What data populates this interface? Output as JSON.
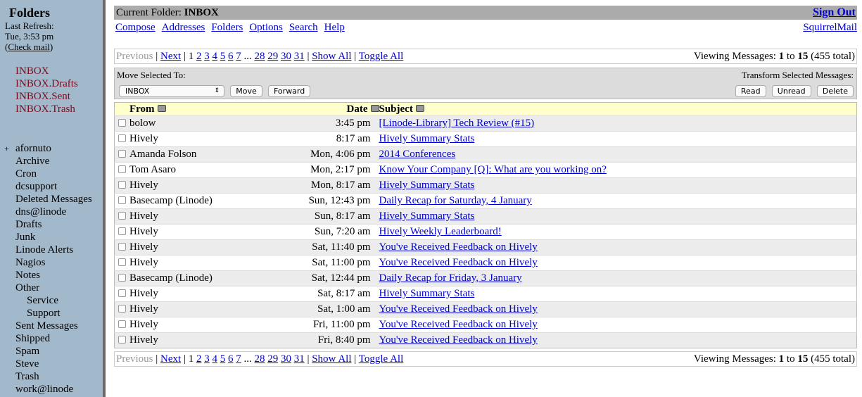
{
  "sidebar": {
    "title": "Folders",
    "last_refresh_label": "Last Refresh:",
    "last_refresh": "Tue, 3:53 pm",
    "check_mail": "Check mail",
    "special": [
      "INBOX",
      "INBOX.Drafts",
      "INBOX.Sent",
      "INBOX.Trash"
    ],
    "folders": [
      {
        "name": "afornuto",
        "collapsed": true
      },
      {
        "name": "Archive"
      },
      {
        "name": "Cron"
      },
      {
        "name": "dcsupport"
      },
      {
        "name": "Deleted Messages"
      },
      {
        "name": "dns@linode"
      },
      {
        "name": "Drafts"
      },
      {
        "name": "Junk"
      },
      {
        "name": "Linode Alerts"
      },
      {
        "name": "Nagios"
      },
      {
        "name": "Notes"
      },
      {
        "name": "Other"
      },
      {
        "name": "Service",
        "sub": true
      },
      {
        "name": "Support",
        "sub": true
      },
      {
        "name": "Sent Messages"
      },
      {
        "name": "Shipped"
      },
      {
        "name": "Spam"
      },
      {
        "name": "Steve"
      },
      {
        "name": "Trash"
      },
      {
        "name": "work@linode"
      }
    ]
  },
  "header": {
    "current_folder_label": "Current Folder:",
    "current_folder": "INBOX",
    "sign_out": "Sign Out",
    "brand": "SquirrelMail",
    "nav": [
      "Compose",
      "Addresses",
      "Folders",
      "Options",
      "Search",
      "Help"
    ]
  },
  "pager": {
    "previous": "Previous",
    "next": "Next",
    "current": "1",
    "pages": [
      "2",
      "3",
      "4",
      "5",
      "6",
      "7"
    ],
    "ellipsis": "...",
    "last_pages": [
      "28",
      "29",
      "30",
      "31"
    ],
    "show_all": "Show All",
    "toggle_all": "Toggle All",
    "viewing_label": "Viewing Messages:",
    "from": "1",
    "to_label": "to",
    "to": "15",
    "total": "(455 total)"
  },
  "actions": {
    "move_label": "Move Selected To:",
    "move_target": "INBOX",
    "move": "Move",
    "forward": "Forward",
    "transform_label": "Transform Selected Messages:",
    "read": "Read",
    "unread": "Unread",
    "delete": "Delete"
  },
  "columns": {
    "from": "From",
    "date": "Date",
    "subject": "Subject"
  },
  "messages": [
    {
      "from": "bolow",
      "date": "3:45 pm",
      "subject": "[Linode-Library] Tech Review (#15)"
    },
    {
      "from": "Hively",
      "date": "8:17 am",
      "subject": "Hively Summary Stats"
    },
    {
      "from": "Amanda Folson",
      "date": "Mon, 4:06 pm",
      "subject": "2014 Conferences"
    },
    {
      "from": "Tom Asaro",
      "date": "Mon, 2:17 pm",
      "subject": "Know Your Company [Q]: What are you working on?"
    },
    {
      "from": "Hively",
      "date": "Mon, 8:17 am",
      "subject": "Hively Summary Stats"
    },
    {
      "from": "Basecamp (Linode)",
      "date": "Sun, 12:43 pm",
      "subject": "Daily Recap for Saturday, 4 January"
    },
    {
      "from": "Hively",
      "date": "Sun, 8:17 am",
      "subject": "Hively Summary Stats"
    },
    {
      "from": "Hively",
      "date": "Sun, 7:20 am",
      "subject": "Hively Weekly Leaderboard!"
    },
    {
      "from": "Hively",
      "date": "Sat, 11:40 pm",
      "subject": "You've Received Feedback on Hively"
    },
    {
      "from": "Hively",
      "date": "Sat, 11:00 pm",
      "subject": "You've Received Feedback on Hively"
    },
    {
      "from": "Basecamp (Linode)",
      "date": "Sat, 12:44 pm",
      "subject": "Daily Recap for Friday, 3 January"
    },
    {
      "from": "Hively",
      "date": "Sat, 8:17 am",
      "subject": "Hively Summary Stats"
    },
    {
      "from": "Hively",
      "date": "Sat, 1:00 am",
      "subject": "You've Received Feedback on Hively"
    },
    {
      "from": "Hively",
      "date": "Fri, 11:00 pm",
      "subject": "You've Received Feedback on Hively"
    },
    {
      "from": "Hively",
      "date": "Fri, 8:40 pm",
      "subject": "You've Received Feedback on Hively"
    }
  ]
}
